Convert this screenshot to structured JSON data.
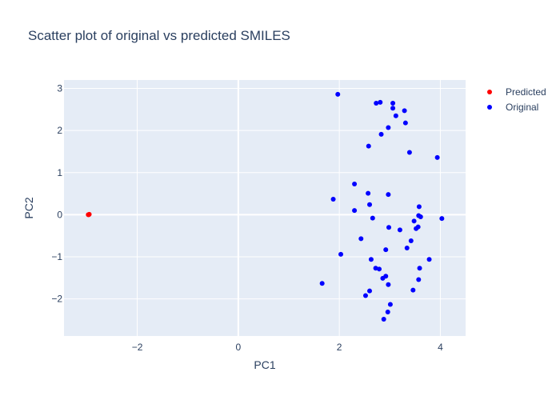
{
  "chart_data": {
    "type": "scatter",
    "title": "Scatter plot of original vs predicted SMILES",
    "xlabel": "PC1",
    "ylabel": "PC2",
    "xlim": [
      -3.45,
      4.5
    ],
    "ylim": [
      -2.88,
      3.2
    ],
    "xticks": [
      -2,
      0,
      2,
      4
    ],
    "yticks": [
      -2,
      -1,
      0,
      1,
      2,
      3
    ],
    "tick_labels_x": [
      "−2",
      "0",
      "2",
      "4"
    ],
    "tick_labels_y": [
      "−2",
      "−1",
      "0",
      "1",
      "2",
      "3"
    ],
    "grid": true,
    "legend_position": "top-right",
    "colors": {
      "plot_bg": "#e5ecf6",
      "grid": "#ffffff",
      "text": "#2a3f5f"
    },
    "series": [
      {
        "name": "Predicted",
        "color": "#ff0000",
        "points": [
          [
            -2.97,
            0.0
          ],
          [
            -2.96,
            0.0
          ],
          [
            -2.95,
            0.01
          ]
        ]
      },
      {
        "name": "Original",
        "color": "#0000ff",
        "points": [
          [
            1.97,
            2.86
          ],
          [
            2.73,
            2.65
          ],
          [
            2.81,
            2.67
          ],
          [
            3.06,
            2.65
          ],
          [
            3.06,
            2.53
          ],
          [
            3.12,
            2.35
          ],
          [
            3.29,
            2.47
          ],
          [
            3.31,
            2.18
          ],
          [
            2.97,
            2.07
          ],
          [
            2.83,
            1.91
          ],
          [
            2.58,
            1.63
          ],
          [
            3.39,
            1.48
          ],
          [
            3.94,
            1.36
          ],
          [
            2.3,
            0.73
          ],
          [
            2.57,
            0.51
          ],
          [
            2.97,
            0.48
          ],
          [
            1.88,
            0.37
          ],
          [
            2.6,
            0.24
          ],
          [
            3.58,
            0.19
          ],
          [
            2.3,
            0.1
          ],
          [
            2.66,
            -0.08
          ],
          [
            3.57,
            -0.02
          ],
          [
            3.61,
            -0.05
          ],
          [
            4.03,
            -0.09
          ],
          [
            3.48,
            -0.15
          ],
          [
            2.98,
            -0.3
          ],
          [
            3.2,
            -0.36
          ],
          [
            3.56,
            -0.29
          ],
          [
            3.52,
            -0.33
          ],
          [
            2.43,
            -0.57
          ],
          [
            3.42,
            -0.62
          ],
          [
            3.34,
            -0.79
          ],
          [
            2.92,
            -0.83
          ],
          [
            2.03,
            -0.94
          ],
          [
            2.63,
            -1.06
          ],
          [
            3.78,
            -1.06
          ],
          [
            2.72,
            -1.27
          ],
          [
            2.79,
            -1.29
          ],
          [
            3.59,
            -1.27
          ],
          [
            2.92,
            -1.46
          ],
          [
            2.86,
            -1.51
          ],
          [
            3.57,
            -1.54
          ],
          [
            1.66,
            -1.63
          ],
          [
            2.97,
            -1.66
          ],
          [
            2.6,
            -1.81
          ],
          [
            3.46,
            -1.79
          ],
          [
            2.52,
            -1.92
          ],
          [
            3.01,
            -2.13
          ],
          [
            2.96,
            -2.31
          ],
          [
            2.88,
            -2.48
          ]
        ]
      }
    ]
  }
}
